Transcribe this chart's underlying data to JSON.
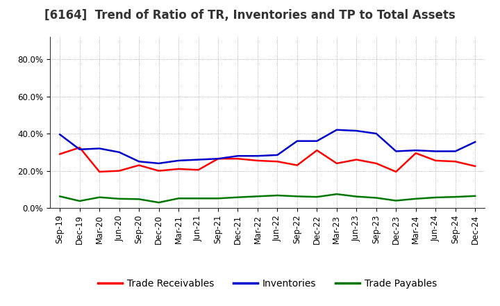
{
  "title": "[6164]  Trend of Ratio of TR, Inventories and TP to Total Assets",
  "x_labels": [
    "Sep-19",
    "Dec-19",
    "Mar-20",
    "Jun-20",
    "Sep-20",
    "Dec-20",
    "Mar-21",
    "Jun-21",
    "Sep-21",
    "Dec-21",
    "Mar-22",
    "Jun-22",
    "Sep-22",
    "Dec-22",
    "Mar-23",
    "Jun-23",
    "Sep-23",
    "Dec-23",
    "Mar-24",
    "Jun-24",
    "Sep-24",
    "Dec-24"
  ],
  "trade_receivables": [
    0.29,
    0.325,
    0.195,
    0.2,
    0.23,
    0.2,
    0.21,
    0.205,
    0.265,
    0.265,
    0.255,
    0.25,
    0.23,
    0.31,
    0.24,
    0.26,
    0.24,
    0.195,
    0.295,
    0.255,
    0.25,
    0.225
  ],
  "inventories": [
    0.395,
    0.315,
    0.32,
    0.3,
    0.25,
    0.24,
    0.255,
    0.26,
    0.265,
    0.28,
    0.28,
    0.285,
    0.36,
    0.36,
    0.42,
    0.415,
    0.4,
    0.305,
    0.31,
    0.305,
    0.305,
    0.355
  ],
  "trade_payables": [
    0.063,
    0.038,
    0.058,
    0.05,
    0.048,
    0.03,
    0.052,
    0.052,
    0.052,
    0.058,
    0.063,
    0.068,
    0.063,
    0.06,
    0.075,
    0.062,
    0.055,
    0.04,
    0.05,
    0.057,
    0.06,
    0.065
  ],
  "tr_color": "#ff0000",
  "inv_color": "#0000cc",
  "tp_color": "#007700",
  "ylim": [
    0.0,
    0.92
  ],
  "yticks": [
    0.0,
    0.2,
    0.4,
    0.6,
    0.8
  ],
  "ytick_labels": [
    "0.0%",
    "20.0%",
    "40.0%",
    "60.0%",
    "80.0%"
  ],
  "legend_labels": [
    "Trade Receivables",
    "Inventories",
    "Trade Payables"
  ],
  "background_color": "#ffffff",
  "grid_color": "#999999",
  "line_width": 1.8,
  "title_fontsize": 12,
  "tick_fontsize": 8.5,
  "legend_fontsize": 10
}
